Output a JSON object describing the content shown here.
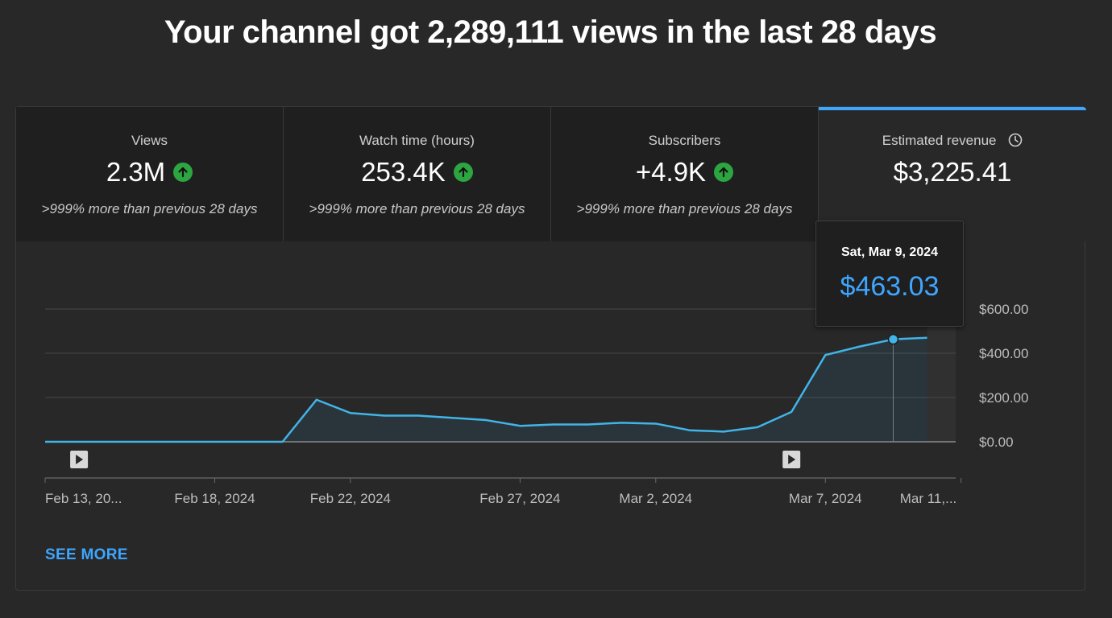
{
  "headline": "Your channel got 2,289,111 views in the last 28 days",
  "colors": {
    "accent": "#3ea6ff",
    "line": "#41b4e8",
    "up": "#2ba640",
    "background": "#282828",
    "tab_bg": "#1f1f1f"
  },
  "tabs": [
    {
      "label": "Views",
      "value": "2.3M",
      "trend_icon": "arrow-up-icon",
      "comparison": ">999% more than previous 28 days",
      "active": false
    },
    {
      "label": "Watch time (hours)",
      "value": "253.4K",
      "trend_icon": "arrow-up-icon",
      "comparison": ">999% more than previous 28 days",
      "active": false
    },
    {
      "label": "Subscribers",
      "value": "+4.9K",
      "trend_icon": "arrow-up-icon",
      "comparison": ">999% more than previous 28 days",
      "active": false
    },
    {
      "label": "Estimated revenue",
      "value": "$3,225.41",
      "info_icon": "clock-icon",
      "active": true
    }
  ],
  "tooltip": {
    "date": "Sat, Mar 9, 2024",
    "value": "$463.03"
  },
  "see_more": "SEE MORE",
  "chart_data": {
    "type": "area",
    "x": [
      "2024-02-13",
      "2024-02-14",
      "2024-02-15",
      "2024-02-16",
      "2024-02-17",
      "2024-02-18",
      "2024-02-19",
      "2024-02-20",
      "2024-02-21",
      "2024-02-22",
      "2024-02-23",
      "2024-02-24",
      "2024-02-25",
      "2024-02-26",
      "2024-02-27",
      "2024-02-28",
      "2024-02-29",
      "2024-03-01",
      "2024-03-02",
      "2024-03-03",
      "2024-03-04",
      "2024-03-05",
      "2024-03-06",
      "2024-03-07",
      "2024-03-08",
      "2024-03-09",
      "2024-03-10"
    ],
    "series": [
      {
        "values": [
          0,
          0,
          0,
          0,
          0,
          0,
          0,
          0,
          190,
          130,
          118,
          118,
          108,
          98,
          72,
          78,
          78,
          86,
          82,
          52,
          46,
          66,
          135,
          392,
          430,
          463,
          470
        ]
      }
    ],
    "ylim": [
      0,
      600
    ],
    "y_ticks": [
      {
        "value": 600,
        "label": "$600.00"
      },
      {
        "value": 400,
        "label": "$400.00"
      },
      {
        "value": 200,
        "label": "$200.00"
      },
      {
        "value": 0,
        "label": "$0.00"
      }
    ],
    "x_ticks": [
      {
        "date": "2024-02-13",
        "label": "Feb 13, 20..."
      },
      {
        "date": "2024-02-18",
        "label": "Feb 18, 2024"
      },
      {
        "date": "2024-02-22",
        "label": "Feb 22, 2024"
      },
      {
        "date": "2024-02-27",
        "label": "Feb 27, 2024"
      },
      {
        "date": "2024-03-02",
        "label": "Mar 2, 2024"
      },
      {
        "date": "2024-03-07",
        "label": "Mar 7, 2024"
      },
      {
        "date": "2024-03-11",
        "label": "Mar 11,..."
      }
    ],
    "markers": [
      {
        "date": "2024-02-14",
        "icon": "video-play-icon"
      },
      {
        "date": "2024-03-06",
        "icon": "video-play-icon"
      }
    ],
    "highlight": {
      "date": "2024-03-09",
      "value": 463.03
    },
    "partial_from": "2024-03-09",
    "grid": true,
    "y_axis_position": "right"
  }
}
